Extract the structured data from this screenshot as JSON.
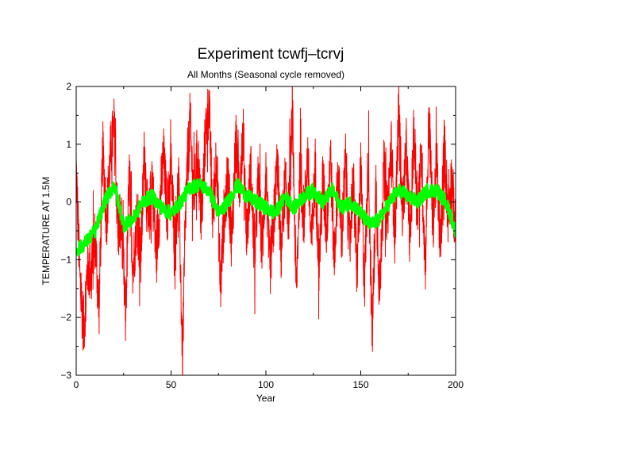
{
  "chart_data": {
    "type": "line",
    "title": "Experiment tcwfj–tcrvj",
    "subtitle": "All Months (Seasonal cycle removed)",
    "xlabel": "Year",
    "ylabel": "TEMPERATURE AT 1.5M",
    "xlim": [
      0,
      200
    ],
    "ylim": [
      -3,
      2
    ],
    "xticks": [
      0,
      50,
      100,
      150,
      200
    ],
    "yticks": [
      -3,
      -2,
      -1,
      0,
      1,
      2
    ],
    "grid": false,
    "series": [
      {
        "color": "#ff0000",
        "style": "monthly values (noisy)",
        "x": [
          0,
          2,
          4,
          6,
          8,
          10,
          12,
          14,
          16,
          18,
          20,
          22,
          24,
          26,
          28,
          30,
          32,
          34,
          36,
          38,
          40,
          42,
          44,
          46,
          48,
          50,
          52,
          54,
          56,
          58,
          60,
          62,
          64,
          66,
          68,
          70,
          72,
          74,
          76,
          78,
          80,
          82,
          84,
          86,
          88,
          90,
          92,
          94,
          96,
          98,
          100,
          102,
          104,
          106,
          108,
          110,
          112,
          114,
          116,
          118,
          120,
          122,
          124,
          126,
          128,
          130,
          132,
          134,
          136,
          138,
          140,
          142,
          144,
          146,
          148,
          150,
          152,
          154,
          156,
          158,
          160,
          162,
          164,
          166,
          168,
          170,
          172,
          174,
          176,
          178,
          180,
          182,
          184,
          186,
          188,
          190,
          192,
          194,
          196,
          198,
          200
        ],
        "y": [
          0.6,
          -1.4,
          -2.2,
          -1.1,
          -1.3,
          -0.6,
          -1.9,
          0.9,
          -0.3,
          0.8,
          1.3,
          -0.5,
          -0.4,
          -2.0,
          0.5,
          -1.2,
          -0.2,
          -1.0,
          0.9,
          -0.6,
          0.5,
          -0.9,
          -0.1,
          0.8,
          -0.2,
          0.6,
          -0.7,
          0.4,
          -2.7,
          0.2,
          1.4,
          0.0,
          0.9,
          -0.4,
          1.1,
          1.7,
          -0.3,
          0.9,
          -1.5,
          -0.2,
          0.4,
          -0.7,
          1.0,
          0.3,
          1.2,
          -0.6,
          0.6,
          -1.0,
          0.4,
          -0.8,
          0.5,
          -1.2,
          -0.4,
          0.7,
          -0.9,
          0.3,
          -0.2,
          1.5,
          -1.6,
          0.6,
          -0.3,
          0.8,
          -0.8,
          0.6,
          -1.1,
          0.4,
          -0.5,
          0.9,
          -1.0,
          0.5,
          -0.6,
          0.7,
          -0.7,
          0.4,
          -1.2,
          0.5,
          -1.4,
          0.8,
          -2.4,
          0.3,
          -1.7,
          0.7,
          -0.3,
          1.0,
          -0.6,
          1.6,
          -0.2,
          0.9,
          -0.7,
          1.2,
          -0.1,
          0.8,
          -1.1,
          1.5,
          -0.4,
          0.7,
          -0.8,
          1.0,
          -0.2,
          0.4,
          -0.6
        ],
        "noise_amplitude": 0.55
      },
      {
        "color": "#00ff00",
        "style": "running mean (thick)",
        "x": [
          0,
          5,
          10,
          15,
          20,
          25,
          30,
          35,
          40,
          45,
          50,
          55,
          60,
          65,
          70,
          75,
          80,
          85,
          90,
          95,
          100,
          105,
          110,
          115,
          120,
          125,
          130,
          135,
          140,
          145,
          150,
          155,
          160,
          165,
          170,
          175,
          180,
          185,
          190,
          195,
          200
        ],
        "y": [
          -0.85,
          -0.7,
          -0.5,
          0.0,
          0.3,
          -0.4,
          -0.3,
          0.0,
          0.1,
          -0.1,
          -0.2,
          0.0,
          0.25,
          0.3,
          0.2,
          -0.2,
          0.0,
          0.3,
          0.1,
          0.0,
          -0.1,
          -0.2,
          0.1,
          -0.1,
          0.1,
          0.2,
          0.0,
          0.2,
          -0.1,
          0.0,
          -0.2,
          -0.4,
          -0.3,
          0.0,
          0.2,
          0.1,
          0.0,
          0.2,
          0.2,
          0.0,
          -0.5
        ],
        "noise_amplitude": 0.12
      }
    ]
  }
}
